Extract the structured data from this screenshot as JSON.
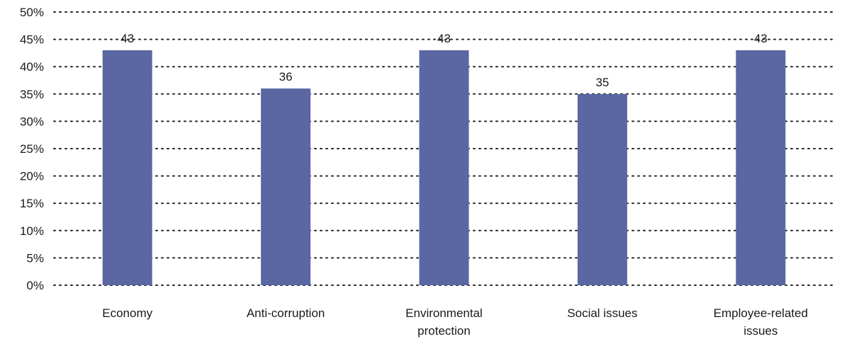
{
  "colors": {
    "bar": "#5a67a3",
    "grid": "#222222",
    "text": "#1a1a1a"
  },
  "chart_data": {
    "type": "bar",
    "title": "",
    "xlabel": "",
    "ylabel": "",
    "categories": [
      [
        "Economy"
      ],
      [
        "Anti-corruption"
      ],
      [
        "Environmental",
        "protection"
      ],
      [
        "Social issues"
      ],
      [
        "Employee-related",
        "issues"
      ]
    ],
    "values": [
      43,
      36,
      43,
      35,
      43
    ],
    "data_labels": [
      "43",
      "36",
      "43",
      "35",
      "43"
    ],
    "ylim": [
      0,
      50
    ],
    "yticks": [
      0,
      5,
      10,
      15,
      20,
      25,
      30,
      35,
      40,
      45,
      50
    ],
    "ytick_labels": [
      "0%",
      "5%",
      "10%",
      "15%",
      "20%",
      "25%",
      "30%",
      "35%",
      "40%",
      "45%",
      "50%"
    ],
    "grid": true,
    "grid_style": "dotted",
    "legend": "none"
  }
}
